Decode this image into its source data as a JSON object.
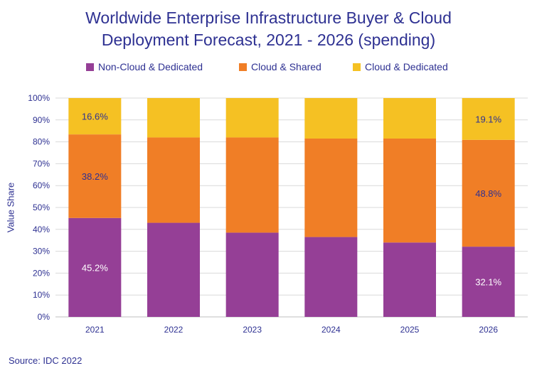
{
  "chart_data": {
    "type": "bar",
    "stacked": true,
    "title_line1": "Worldwide Enterprise Infrastructure Buyer & Cloud",
    "title_line2": "Deployment Forecast, 2021 - 2026 (spending)",
    "ylabel": "Value  Share",
    "xlabel": "",
    "categories": [
      "2021",
      "2022",
      "2023",
      "2024",
      "2025",
      "2026"
    ],
    "ylim": [
      0,
      100
    ],
    "yticks": [
      "0%",
      "10%",
      "20%",
      "30%",
      "40%",
      "50%",
      "60%",
      "70%",
      "80%",
      "90%",
      "100%"
    ],
    "grid": true,
    "legend_position": "top",
    "series": [
      {
        "name": "Non-Cloud & Dedicated",
        "color": "#953f96",
        "values": [
          45.2,
          43.0,
          38.5,
          36.5,
          34.0,
          32.1
        ]
      },
      {
        "name": "Cloud & Shared",
        "color": "#f07e26",
        "values": [
          38.2,
          39.0,
          43.5,
          45.0,
          47.5,
          48.8
        ]
      },
      {
        "name": "Cloud & Dedicated",
        "color": "#f5c123",
        "values": [
          16.6,
          18.0,
          18.0,
          18.5,
          18.5,
          19.1
        ]
      }
    ],
    "data_labels": [
      {
        "series": 0,
        "category": 0,
        "text": "45.2%"
      },
      {
        "series": 1,
        "category": 0,
        "text": "38.2%"
      },
      {
        "series": 2,
        "category": 0,
        "text": "16.6%"
      },
      {
        "series": 0,
        "category": 5,
        "text": "32.1%"
      },
      {
        "series": 1,
        "category": 5,
        "text": "48.8%"
      },
      {
        "series": 2,
        "category": 5,
        "text": "19.1%"
      }
    ],
    "source": "Source: IDC 2022"
  }
}
